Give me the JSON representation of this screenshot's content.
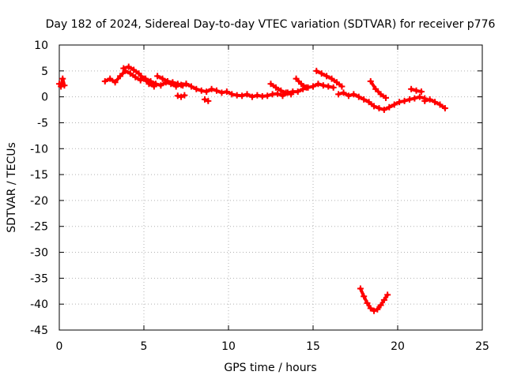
{
  "chart_data": {
    "type": "scatter",
    "title": "Day 182 of 2024, Sidereal Day-to-day VTEC variation (SDTVAR) for receiver p776",
    "xlabel": "GPS time / hours",
    "ylabel": "SDTVAR / TECUs",
    "xlim": [
      0,
      25
    ],
    "ylim": [
      -45,
      10
    ],
    "xticks": [
      0,
      5,
      10,
      15,
      20,
      25
    ],
    "yticks": [
      10,
      5,
      0,
      -5,
      -10,
      -15,
      -20,
      -25,
      -30,
      -35,
      -40,
      -45
    ],
    "grid": true,
    "marker": "plus",
    "series": [
      {
        "name": "SDTVAR",
        "color": "#ff0000",
        "segments": [
          {
            "x": [
              0.0,
              0.1,
              0.2,
              0.3
            ],
            "y": [
              2.5,
              2.0,
              3.5,
              2.2
            ]
          },
          {
            "x": [
              2.7,
              3.0,
              3.3,
              3.6,
              3.9,
              4.2,
              4.5,
              4.8,
              5.1,
              5.4,
              5.7,
              6.0,
              6.3,
              6.6,
              6.9,
              7.2,
              7.5,
              7.8,
              8.1,
              8.4,
              8.7,
              9.0,
              9.3,
              9.6,
              9.9,
              10.2,
              10.5,
              10.8,
              11.1,
              11.4,
              11.7,
              12.0,
              12.3,
              12.6,
              12.9,
              13.2,
              13.5,
              13.8,
              14.1,
              14.4,
              14.7,
              15.0,
              15.3,
              15.6,
              15.9,
              16.2
            ],
            "y": [
              3.0,
              3.5,
              2.8,
              4.0,
              5.0,
              4.5,
              3.8,
              3.2,
              3.5,
              3.0,
              2.5,
              2.2,
              2.8,
              2.5,
              2.0,
              2.3,
              2.5,
              2.0,
              1.5,
              1.2,
              1.0,
              1.5,
              1.2,
              0.8,
              1.0,
              0.5,
              0.3,
              0.2,
              0.5,
              0.0,
              0.3,
              0.1,
              0.2,
              0.5,
              0.6,
              0.2,
              0.8,
              1.0,
              1.0,
              1.5,
              1.8,
              2.0,
              2.5,
              2.2,
              2.0,
              1.8
            ]
          },
          {
            "x": [
              3.8,
              4.1,
              4.4,
              4.7,
              5.0,
              5.3,
              5.6
            ],
            "y": [
              5.5,
              5.8,
              5.2,
              4.5,
              3.5,
              2.5,
              2.0
            ]
          },
          {
            "x": [
              5.8,
              6.1,
              6.4,
              6.7,
              7.0,
              7.3,
              7.5
            ],
            "y": [
              4.0,
              3.5,
              3.0,
              2.8,
              2.5,
              2.2,
              2.5
            ]
          },
          {
            "x": [
              7.0,
              7.2,
              7.4
            ],
            "y": [
              0.2,
              0.0,
              0.3
            ]
          },
          {
            "x": [
              8.6,
              8.8
            ],
            "y": [
              -0.5,
              -0.8
            ]
          },
          {
            "x": [
              12.5,
              12.8,
              13.1,
              13.4,
              13.7
            ],
            "y": [
              2.5,
              1.8,
              1.2,
              0.8,
              0.5
            ]
          },
          {
            "x": [
              14.0,
              14.3,
              14.6
            ],
            "y": [
              3.5,
              2.5,
              1.8
            ]
          },
          {
            "x": [
              15.2,
              15.5,
              15.8,
              16.1,
              16.4,
              16.7
            ],
            "y": [
              5.0,
              4.5,
              4.0,
              3.5,
              2.8,
              2.0
            ]
          },
          {
            "x": [
              16.5,
              16.8,
              17.1,
              17.4,
              17.7,
              18.0,
              18.3,
              18.6,
              18.9,
              19.2,
              19.5,
              19.8,
              20.1,
              20.4,
              20.7,
              21.0,
              21.3,
              21.6
            ],
            "y": [
              0.5,
              0.8,
              0.2,
              0.5,
              0.0,
              -0.5,
              -1.0,
              -1.8,
              -2.2,
              -2.5,
              -2.0,
              -1.5,
              -1.0,
              -0.8,
              -0.5,
              -0.3,
              0.0,
              -0.3
            ]
          },
          {
            "x": [
              18.4,
              18.7,
              19.0,
              19.3
            ],
            "y": [
              3.0,
              1.5,
              0.5,
              -0.2
            ]
          },
          {
            "x": [
              20.8,
              21.1,
              21.4
            ],
            "y": [
              1.5,
              1.2,
              1.0
            ]
          },
          {
            "x": [
              21.6,
              21.9,
              22.2,
              22.5,
              22.8
            ],
            "y": [
              -0.8,
              -0.5,
              -1.0,
              -1.5,
              -2.2
            ]
          },
          {
            "x": [
              17.8,
              18.0,
              18.2,
              18.4,
              18.6,
              18.8,
              19.0,
              19.2,
              19.4
            ],
            "y": [
              -37.0,
              -38.5,
              -39.8,
              -40.8,
              -41.3,
              -41.0,
              -40.2,
              -39.2,
              -38.2
            ]
          }
        ]
      }
    ]
  }
}
